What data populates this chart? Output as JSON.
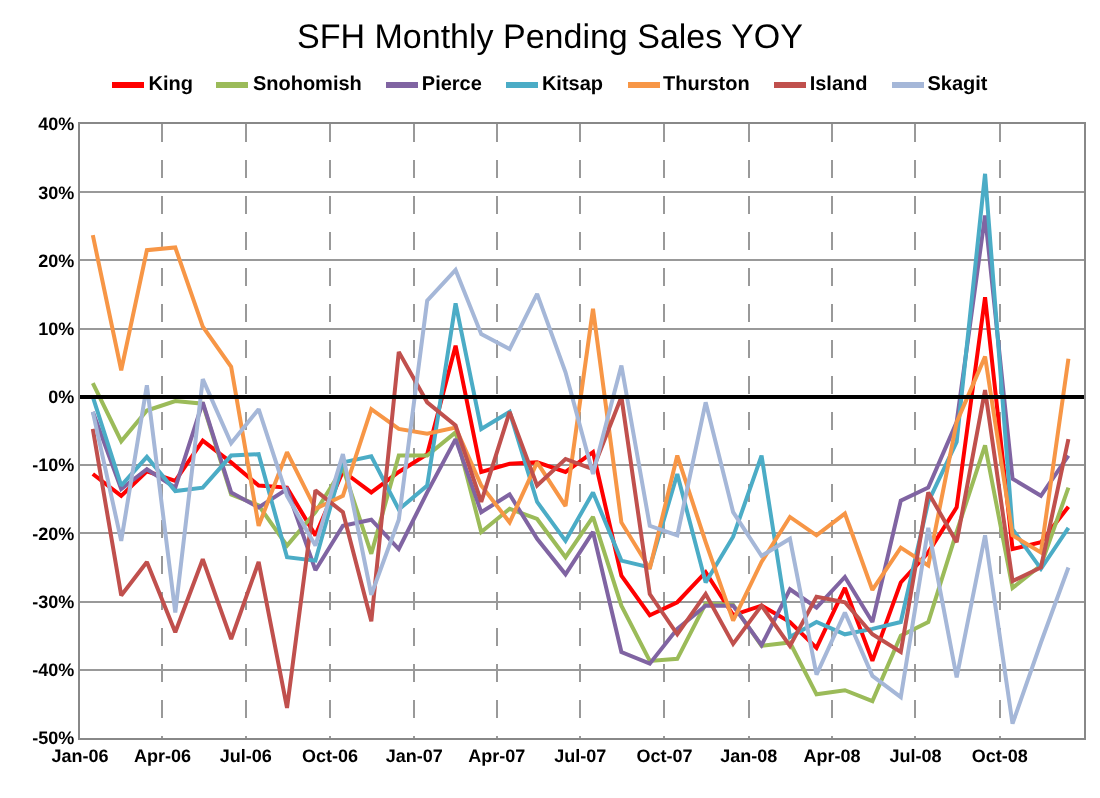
{
  "chart_data": {
    "type": "line",
    "title": "SFH Monthly Pending Sales YOY",
    "x": [
      "2006-01-15",
      "2006-02-15",
      "2006-03-15",
      "2006-04-15",
      "2006-05-15",
      "2006-06-15",
      "2006-07-15",
      "2006-08-15",
      "2006-09-15",
      "2006-10-15",
      "2006-11-15",
      "2006-12-15",
      "2007-01-15",
      "2007-02-15",
      "2007-03-15",
      "2007-04-15",
      "2007-05-15",
      "2007-06-15",
      "2007-07-15",
      "2007-08-15",
      "2007-09-15",
      "2007-10-15",
      "2007-11-15",
      "2007-12-15",
      "2008-01-15",
      "2008-02-15",
      "2008-03-15",
      "2008-04-15",
      "2008-05-15",
      "2008-06-15",
      "2008-07-15",
      "2008-08-15",
      "2008-09-15",
      "2008-10-15",
      "2008-11-15",
      "2008-12-15"
    ],
    "series": [
      {
        "name": "King",
        "color": "#ff0000",
        "values": [
          -11.3,
          -14.5,
          -10.9,
          -12.3,
          -6.4,
          -9.6,
          -13,
          -13.3,
          -20.3,
          -10.9,
          -14,
          -11,
          -8.4,
          7.5,
          -11,
          -9.8,
          -9.6,
          -11,
          -8.1,
          -26.2,
          -32,
          -30.1,
          -25.7,
          -32,
          -30.6,
          -33,
          -36.8,
          -28,
          -38.7,
          -27.2,
          -22.8,
          -16.2,
          14.6,
          -22.3,
          -21.3,
          -16.1
        ]
      },
      {
        "name": "Snohomish",
        "color": "#9bbb59",
        "values": [
          2,
          -6.5,
          -2,
          -0.6,
          -1,
          -14.3,
          -15.9,
          -21.8,
          -16.9,
          -10.4,
          -23,
          -8.6,
          -8.6,
          -5.2,
          -19.8,
          -16.4,
          -17.9,
          -23.5,
          -17.6,
          -30.6,
          -38.7,
          -38.4,
          -30.3,
          -30.5,
          -36.5,
          -36,
          -43.6,
          -43,
          -44.6,
          -35,
          -33,
          -19.8,
          -7.1,
          -28,
          -24.7,
          -13.3
        ]
      },
      {
        "name": "Pierce",
        "color": "#8064a2",
        "values": [
          -2.2,
          -13.5,
          -10.6,
          -13.3,
          -0.8,
          -14,
          -16.2,
          -13.5,
          -25.4,
          -18.9,
          -18,
          -22.3,
          -14,
          -6.2,
          -16.9,
          -14.3,
          -20.8,
          -26,
          -19.8,
          -37.4,
          -39.1,
          -34,
          -30.6,
          -30.6,
          -36.4,
          -28.2,
          -30.9,
          -26.4,
          -33,
          -15.2,
          -13.3,
          -3.7,
          26.6,
          -12,
          -14.5,
          -8.6
        ]
      },
      {
        "name": "Kitsap",
        "color": "#4bacc6",
        "values": [
          0,
          -13,
          -8.8,
          -13.8,
          -13.3,
          -8.6,
          -8.4,
          -23.5,
          -24,
          -9.6,
          -8.7,
          -16.5,
          -13,
          13.7,
          -4.7,
          -2.2,
          -15.4,
          -21.1,
          -14,
          -24,
          -25,
          -11.3,
          -27.2,
          -20.5,
          -8.6,
          -35.2,
          -33,
          -34.8,
          -34,
          -33,
          -15.4,
          -6.6,
          32.7,
          -19.4,
          -25.2,
          -19.2
        ]
      },
      {
        "name": "Thurston",
        "color": "#f79646",
        "values": [
          23.7,
          3.9,
          21.5,
          21.9,
          10.3,
          4.4,
          -18.9,
          -8.1,
          -16.4,
          -14.5,
          -1.8,
          -4.7,
          -5.4,
          -4.5,
          -13,
          -18.4,
          -9.6,
          -16,
          12.9,
          -18.4,
          -25.2,
          -8.6,
          -21.3,
          -32.8,
          -24.2,
          -17.6,
          -20.3,
          -17.1,
          -28.3,
          -22.1,
          -24.7,
          -3.7,
          5.9,
          -20.3,
          -22.8,
          5.6
        ]
      },
      {
        "name": "Island",
        "color": "#c0504d",
        "values": [
          -4.7,
          -29.1,
          -24.2,
          -34.5,
          -23.8,
          -35.5,
          -24.2,
          -45.6,
          -13.7,
          -16.9,
          -32.9,
          6.6,
          -0.8,
          -4.2,
          -15.4,
          -2.2,
          -13,
          -9.1,
          -10.6,
          0,
          -28.9,
          -34.8,
          -28.9,
          -36.2,
          -30.6,
          -36.5,
          -29.3,
          -30.1,
          -34.8,
          -37.4,
          -14,
          -21.3,
          1,
          -27,
          -25,
          -6.2
        ]
      },
      {
        "name": "Skagit",
        "color": "#a5b7d8",
        "values": [
          -2.2,
          -21.1,
          1.7,
          -31.6,
          2.6,
          -6.8,
          -1.8,
          -14.5,
          -21.8,
          -8.4,
          -29,
          -18,
          14.1,
          18.6,
          9.2,
          7,
          15.1,
          3.6,
          -11.3,
          4.6,
          -18.9,
          -20.3,
          -0.8,
          -16.9,
          -23.3,
          -20.8,
          -40.7,
          -31.6,
          -40.9,
          -44,
          -19.2,
          -41.1,
          -20.3,
          -47.9,
          -36,
          -25
        ]
      }
    ],
    "xlim": [
      "2006-01-01",
      "2009-01-01"
    ],
    "xticks": [
      {
        "value": "2006-01-01",
        "label": "Jan-06"
      },
      {
        "value": "2006-04-01",
        "label": "Apr-06"
      },
      {
        "value": "2006-07-01",
        "label": "Jul-06"
      },
      {
        "value": "2006-10-01",
        "label": "Oct-06"
      },
      {
        "value": "2007-01-01",
        "label": "Jan-07"
      },
      {
        "value": "2007-04-01",
        "label": "Apr-07"
      },
      {
        "value": "2007-07-01",
        "label": "Jul-07"
      },
      {
        "value": "2007-10-01",
        "label": "Oct-07"
      },
      {
        "value": "2008-01-01",
        "label": "Jan-08"
      },
      {
        "value": "2008-04-01",
        "label": "Apr-08"
      },
      {
        "value": "2008-07-01",
        "label": "Jul-08"
      },
      {
        "value": "2008-10-01",
        "label": "Oct-08"
      }
    ],
    "ylim": [
      -50,
      40
    ],
    "yticks": [
      {
        "value": -50,
        "label": "-50%"
      },
      {
        "value": -40,
        "label": "-40%"
      },
      {
        "value": -30,
        "label": "-30%"
      },
      {
        "value": -20,
        "label": "-20%"
      },
      {
        "value": -10,
        "label": "-10%"
      },
      {
        "value": 0,
        "label": "0%"
      },
      {
        "value": 10,
        "label": "10%"
      },
      {
        "value": 20,
        "label": "20%"
      },
      {
        "value": 30,
        "label": "30%"
      },
      {
        "value": 40,
        "label": "40%"
      }
    ],
    "ref_lines": [
      {
        "axis": "y",
        "value": 0,
        "color": "#000000"
      }
    ],
    "grid": true,
    "legend": "top",
    "marker": "none",
    "line_style": "solid"
  }
}
